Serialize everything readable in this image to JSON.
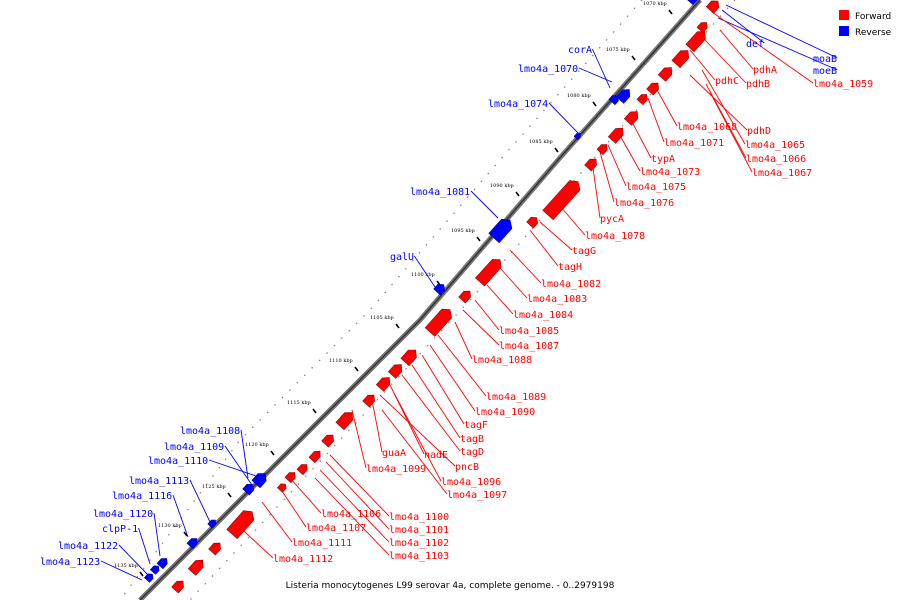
{
  "caption": "Listeria monocytogenes L99 serovar 4a, complete genome. - 0..2979198",
  "legend": [
    {
      "label": "Forward",
      "color": "#ff0000"
    },
    {
      "label": "Reverse",
      "color": "#0000ff"
    }
  ],
  "ticks": [
    "1070 kbp",
    "1075 kbp",
    "1080 kbp",
    "1085 kbp",
    "1090 kbp",
    "1095 kbp",
    "1100 kbp",
    "1105 kbp",
    "1110 kbp",
    "1115 kbp",
    "1120 kbp",
    "1125 kbp",
    "1130 kbp",
    "1135 kbp"
  ],
  "reverse_genes": [
    "def",
    "moaB",
    "moeB",
    "corA",
    "lmo4a_1070",
    "lmo4a_1074",
    "lmo4a_1081",
    "galU",
    "lmo4a_1108",
    "lmo4a_1109",
    "lmo4a_1110",
    "lmo4a_1113",
    "lmo4a_1116",
    "lmo4a_1120",
    "clpP-1",
    "lmo4a_1122",
    "lmo4a_1123"
  ],
  "forward_genes": [
    "pdhA",
    "pdhB",
    "pdhC",
    "lmo4a_1059",
    "pdhD",
    "lmo4a_1068",
    "lmo4a_1065",
    "lmo4a_1071",
    "lmo4a_1066",
    "typA",
    "lmo4a_1067",
    "lmo4a_1073",
    "lmo4a_1075",
    "lmo4a_1076",
    "pycA",
    "lmo4a_1078",
    "tagG",
    "tagH",
    "lmo4a_1082",
    "lmo4a_1083",
    "lmo4a_1084",
    "lmo4a_1085",
    "lmo4a_1087",
    "lmo4a_1088",
    "lmo4a_1089",
    "lmo4a_1090",
    "tagF",
    "tagB",
    "tagD",
    "guaA",
    "nadE",
    "pncB",
    "lmo4a_1099",
    "lmo4a_1096",
    "lmo4a_1097",
    "lmo4a_1106",
    "lmo4a_1100",
    "lmo4a_1107",
    "lmo4a_1101",
    "lmo4a_1111",
    "lmo4a_1102",
    "lmo4a_1112",
    "lmo4a_1103"
  ]
}
